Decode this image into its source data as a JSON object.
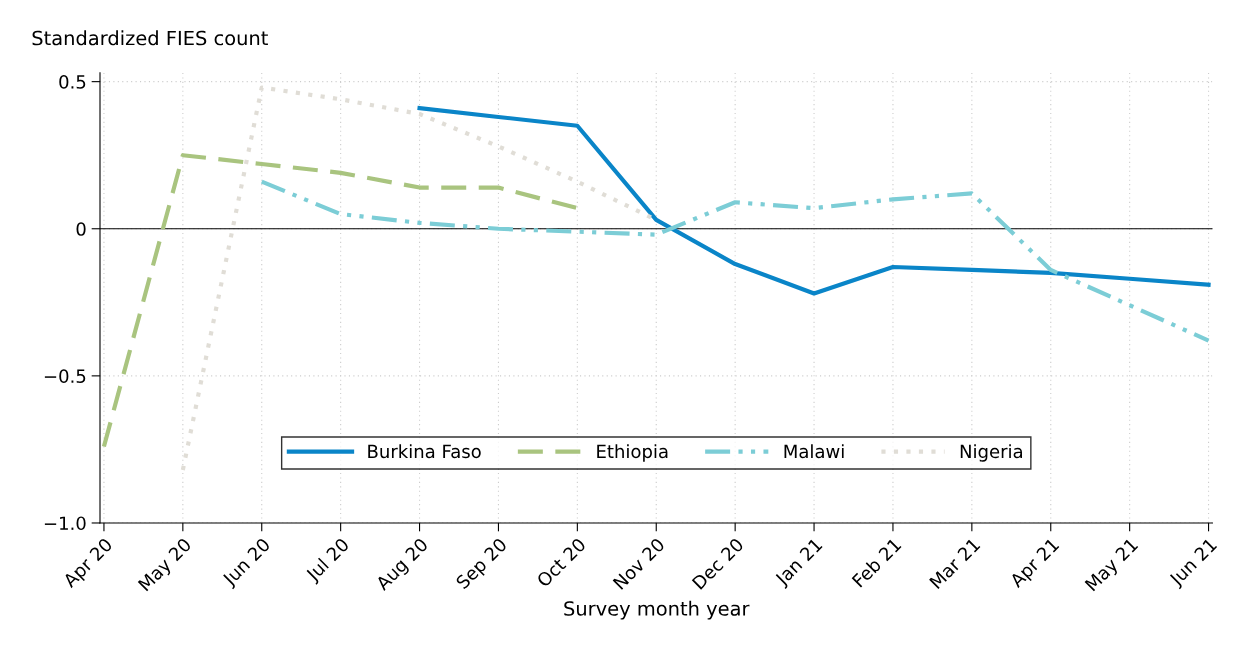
{
  "chart_data": {
    "type": "line",
    "ylabel": "Standardized FIES count",
    "xlabel": "Survey month year",
    "categories": [
      "Apr 20",
      "May 20",
      "Jun 20",
      "Jul 20",
      "Aug 20",
      "Sep 20",
      "Oct 20",
      "Nov 20",
      "Dec 20",
      "Jan 21",
      "Feb 21",
      "Mar 21",
      "Apr 21",
      "May 21",
      "Jun 21"
    ],
    "series": [
      {
        "name": "Burkina Faso",
        "color": "#0a85c8",
        "line_style": "solid",
        "values": [
          null,
          null,
          null,
          null,
          0.41,
          0.38,
          0.35,
          0.03,
          -0.12,
          -0.22,
          -0.13,
          -0.14,
          -0.15,
          -0.17,
          -0.19
        ]
      },
      {
        "name": "Ethiopia",
        "color": "#a9c47f",
        "line_style": "dashed",
        "values": [
          -0.74,
          0.25,
          0.22,
          0.19,
          0.14,
          0.14,
          0.07,
          null,
          null,
          null,
          null,
          null,
          null,
          null,
          null
        ]
      },
      {
        "name": "Malawi",
        "color": "#7ccdd6",
        "line_style": "dashdot",
        "values": [
          null,
          null,
          0.16,
          0.05,
          0.02,
          0.0,
          -0.01,
          -0.02,
          0.09,
          0.07,
          0.1,
          0.12,
          -0.14,
          -0.26,
          -0.38
        ]
      },
      {
        "name": "Nigeria",
        "color": "#e0ddd6",
        "line_style": "dotted",
        "values": [
          null,
          -0.82,
          0.48,
          0.44,
          0.39,
          0.28,
          0.16,
          0.03,
          null,
          null,
          null,
          null,
          null,
          null,
          null
        ]
      }
    ],
    "ylim": [
      -1.0,
      0.53
    ],
    "yticks": [
      {
        "value": 0.5,
        "label": "0.5"
      },
      0,
      {
        "value": -0.5,
        "label": "−0.5"
      },
      {
        "value": -1.0,
        "label": "−1.0"
      }
    ],
    "ref_lines": [
      {
        "axis": "y",
        "value": 0,
        "color": "#000000"
      }
    ],
    "grid": true,
    "legend": "bottom",
    "marker": "none"
  }
}
